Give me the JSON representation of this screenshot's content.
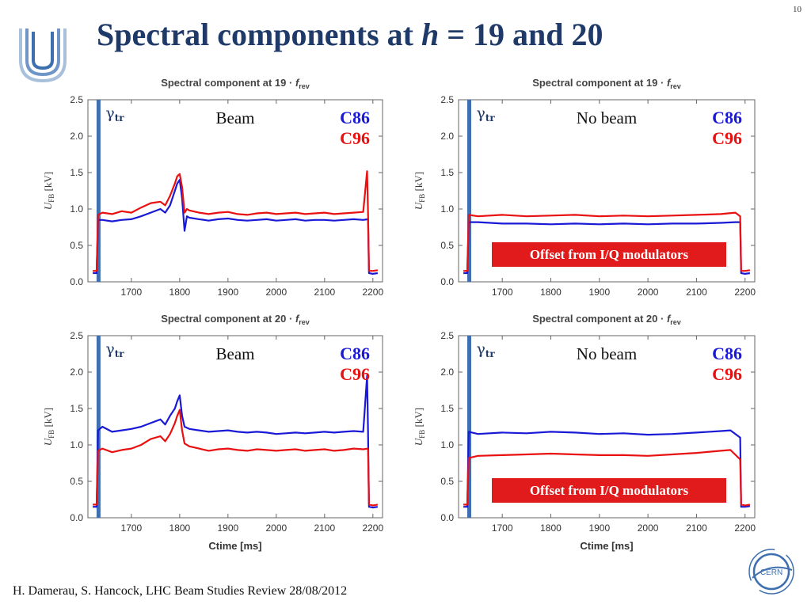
{
  "slide_number": "10",
  "title": {
    "prefix": "Spectral components at ",
    "variable": "h",
    "suffix": " = 19 and 20"
  },
  "footer": "H. Damerau, S. Hancock, LHC Beam Studies Review 28/08/2012",
  "logo_text": "CERN",
  "colors": {
    "c86": "#1a1ad6",
    "c96": "#e81010",
    "gamma_line": "#3f6fb0",
    "offset_box": "#e11b1b",
    "title": "#1f3a68"
  },
  "chart_data": [
    {
      "type": "line",
      "title": "Spectral component at 19 · f_rev",
      "xlabel": "",
      "ylabel": "U_FB [kV]",
      "xlim": [
        1610,
        2220
      ],
      "ylim": [
        0,
        2.5
      ],
      "xticks": [
        1700,
        1800,
        1900,
        2000,
        2100,
        2200
      ],
      "yticks": [
        "0.0",
        "0.5",
        "1.0",
        "1.5",
        "2.0",
        "2.5"
      ],
      "gamma_tr_x": 1632,
      "annotation": "Beam",
      "offset_note": "",
      "series": [
        {
          "name": "C86",
          "x": [
            1620,
            1628,
            1631,
            1640,
            1660,
            1680,
            1700,
            1720,
            1740,
            1760,
            1770,
            1780,
            1790,
            1795,
            1800,
            1805,
            1810,
            1815,
            1820,
            1840,
            1860,
            1880,
            1900,
            1920,
            1940,
            1960,
            1980,
            2000,
            2020,
            2040,
            2060,
            2080,
            2100,
            2120,
            2140,
            2160,
            2180,
            2190,
            2192,
            2200,
            2210
          ],
          "y": [
            0.12,
            0.12,
            0.85,
            0.85,
            0.83,
            0.85,
            0.86,
            0.9,
            0.95,
            1.0,
            0.95,
            1.05,
            1.25,
            1.35,
            1.4,
            1.15,
            0.7,
            0.9,
            0.88,
            0.86,
            0.84,
            0.86,
            0.87,
            0.85,
            0.84,
            0.85,
            0.86,
            0.84,
            0.85,
            0.86,
            0.84,
            0.85,
            0.85,
            0.84,
            0.85,
            0.86,
            0.85,
            0.86,
            0.12,
            0.11,
            0.12
          ]
        },
        {
          "name": "C96",
          "x": [
            1620,
            1628,
            1631,
            1640,
            1660,
            1680,
            1700,
            1720,
            1740,
            1760,
            1770,
            1780,
            1790,
            1795,
            1800,
            1805,
            1810,
            1815,
            1820,
            1840,
            1860,
            1880,
            1900,
            1920,
            1940,
            1960,
            1980,
            2000,
            2020,
            2040,
            2060,
            2080,
            2100,
            2120,
            2140,
            2160,
            2180,
            2188,
            2190,
            2192,
            2200,
            2210
          ],
          "y": [
            0.15,
            0.15,
            0.92,
            0.95,
            0.93,
            0.97,
            0.95,
            1.02,
            1.08,
            1.1,
            1.05,
            1.18,
            1.35,
            1.45,
            1.48,
            1.3,
            0.95,
            1.0,
            0.98,
            0.95,
            0.93,
            0.95,
            0.96,
            0.93,
            0.92,
            0.94,
            0.95,
            0.93,
            0.94,
            0.95,
            0.93,
            0.94,
            0.95,
            0.93,
            0.94,
            0.95,
            0.96,
            1.52,
            0.95,
            0.15,
            0.15,
            0.16
          ]
        }
      ]
    },
    {
      "type": "line",
      "title": "Spectral component at 19 · f_rev",
      "xlabel": "",
      "ylabel": "U_FB [kV]",
      "xlim": [
        1610,
        2220
      ],
      "ylim": [
        0,
        2.5
      ],
      "xticks": [
        1700,
        1800,
        1900,
        2000,
        2100,
        2200
      ],
      "yticks": [
        "0.0",
        "0.5",
        "1.0",
        "1.5",
        "2.0",
        "2.5"
      ],
      "gamma_tr_x": 1632,
      "annotation": "No beam",
      "offset_note": "Offset from I/Q modulators",
      "series": [
        {
          "name": "C86",
          "x": [
            1620,
            1628,
            1631,
            1650,
            1700,
            1750,
            1800,
            1850,
            1900,
            1950,
            2000,
            2050,
            2100,
            2150,
            2180,
            2190,
            2192,
            2200,
            2210
          ],
          "y": [
            0.12,
            0.12,
            0.82,
            0.82,
            0.8,
            0.8,
            0.79,
            0.8,
            0.79,
            0.8,
            0.79,
            0.8,
            0.8,
            0.81,
            0.82,
            0.82,
            0.12,
            0.11,
            0.12
          ]
        },
        {
          "name": "C96",
          "x": [
            1620,
            1628,
            1631,
            1650,
            1700,
            1750,
            1800,
            1850,
            1900,
            1950,
            2000,
            2050,
            2100,
            2150,
            2180,
            2190,
            2192,
            2200,
            2210
          ],
          "y": [
            0.15,
            0.15,
            0.92,
            0.9,
            0.92,
            0.9,
            0.91,
            0.92,
            0.9,
            0.91,
            0.9,
            0.91,
            0.92,
            0.93,
            0.95,
            0.9,
            0.15,
            0.15,
            0.16
          ]
        }
      ]
    },
    {
      "type": "line",
      "title": "Spectral component at 20 · f_rev",
      "xlabel": "Ctime [ms]",
      "ylabel": "U_FB [kV]",
      "xlim": [
        1610,
        2220
      ],
      "ylim": [
        0,
        2.5
      ],
      "xticks": [
        1700,
        1800,
        1900,
        2000,
        2100,
        2200
      ],
      "yticks": [
        "0.0",
        "0.5",
        "1.0",
        "1.5",
        "2.0",
        "2.5"
      ],
      "gamma_tr_x": 1632,
      "annotation": "Beam",
      "offset_note": "",
      "series": [
        {
          "name": "C86",
          "x": [
            1620,
            1628,
            1631,
            1640,
            1660,
            1680,
            1700,
            1720,
            1740,
            1760,
            1770,
            1780,
            1790,
            1795,
            1800,
            1805,
            1810,
            1820,
            1840,
            1860,
            1880,
            1900,
            1920,
            1940,
            1960,
            1980,
            2000,
            2020,
            2040,
            2060,
            2080,
            2100,
            2120,
            2140,
            2160,
            2180,
            2188,
            2190,
            2192,
            2200,
            2210
          ],
          "y": [
            0.15,
            0.15,
            1.2,
            1.25,
            1.18,
            1.2,
            1.22,
            1.25,
            1.3,
            1.35,
            1.28,
            1.4,
            1.5,
            1.6,
            1.68,
            1.4,
            1.25,
            1.22,
            1.2,
            1.18,
            1.19,
            1.2,
            1.18,
            1.17,
            1.18,
            1.17,
            1.15,
            1.16,
            1.17,
            1.16,
            1.17,
            1.18,
            1.17,
            1.18,
            1.19,
            1.18,
            1.95,
            1.18,
            0.15,
            0.14,
            0.15
          ]
        },
        {
          "name": "C96",
          "x": [
            1620,
            1628,
            1631,
            1640,
            1660,
            1680,
            1700,
            1720,
            1740,
            1760,
            1770,
            1780,
            1790,
            1795,
            1800,
            1805,
            1810,
            1820,
            1840,
            1860,
            1880,
            1900,
            1920,
            1940,
            1960,
            1980,
            2000,
            2020,
            2040,
            2060,
            2080,
            2100,
            2120,
            2140,
            2160,
            2180,
            2190,
            2192,
            2200,
            2210
          ],
          "y": [
            0.18,
            0.18,
            0.92,
            0.95,
            0.9,
            0.93,
            0.95,
            1.0,
            1.08,
            1.12,
            1.05,
            1.15,
            1.3,
            1.4,
            1.48,
            1.2,
            1.02,
            0.98,
            0.95,
            0.92,
            0.94,
            0.95,
            0.93,
            0.92,
            0.94,
            0.93,
            0.92,
            0.93,
            0.94,
            0.92,
            0.93,
            0.94,
            0.92,
            0.93,
            0.95,
            0.94,
            0.95,
            0.18,
            0.17,
            0.18
          ]
        }
      ]
    },
    {
      "type": "line",
      "title": "Spectral component at 20 · f_rev",
      "xlabel": "Ctime [ms]",
      "ylabel": "U_FB [kV]",
      "xlim": [
        1610,
        2220
      ],
      "ylim": [
        0,
        2.5
      ],
      "xticks": [
        1700,
        1800,
        1900,
        2000,
        2100,
        2200
      ],
      "yticks": [
        "0.0",
        "0.5",
        "1.0",
        "1.5",
        "2.0",
        "2.5"
      ],
      "gamma_tr_x": 1632,
      "annotation": "No beam",
      "offset_note": "Offset from I/Q modulators",
      "series": [
        {
          "name": "C86",
          "x": [
            1620,
            1628,
            1631,
            1650,
            1700,
            1750,
            1800,
            1850,
            1900,
            1950,
            2000,
            2050,
            2100,
            2150,
            2170,
            2190,
            2192,
            2200,
            2210
          ],
          "y": [
            0.15,
            0.15,
            1.18,
            1.15,
            1.17,
            1.16,
            1.18,
            1.17,
            1.15,
            1.16,
            1.14,
            1.15,
            1.17,
            1.19,
            1.2,
            1.1,
            0.15,
            0.15,
            0.16
          ]
        },
        {
          "name": "C96",
          "x": [
            1620,
            1628,
            1631,
            1650,
            1700,
            1750,
            1800,
            1850,
            1900,
            1950,
            2000,
            2050,
            2100,
            2150,
            2170,
            2190,
            2192,
            2200,
            2210
          ],
          "y": [
            0.18,
            0.18,
            0.82,
            0.85,
            0.86,
            0.87,
            0.88,
            0.87,
            0.86,
            0.86,
            0.85,
            0.87,
            0.89,
            0.92,
            0.93,
            0.8,
            0.18,
            0.17,
            0.18
          ]
        }
      ]
    }
  ]
}
